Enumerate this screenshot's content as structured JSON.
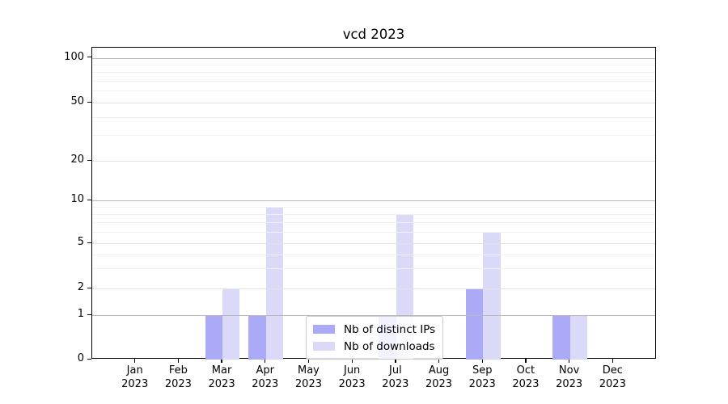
{
  "title": "vcd 2023",
  "chart_data": {
    "type": "bar",
    "title": "vcd 2023",
    "categories": [
      {
        "month": "Jan",
        "year": "2023"
      },
      {
        "month": "Feb",
        "year": "2023"
      },
      {
        "month": "Mar",
        "year": "2023"
      },
      {
        "month": "Apr",
        "year": "2023"
      },
      {
        "month": "May",
        "year": "2023"
      },
      {
        "month": "Jun",
        "year": "2023"
      },
      {
        "month": "Jul",
        "year": "2023"
      },
      {
        "month": "Aug",
        "year": "2023"
      },
      {
        "month": "Sep",
        "year": "2023"
      },
      {
        "month": "Oct",
        "year": "2023"
      },
      {
        "month": "Nov",
        "year": "2023"
      },
      {
        "month": "Dec",
        "year": "2023"
      }
    ],
    "series": [
      {
        "name": "Nb of distinct IPs",
        "color": "#aaaaf7",
        "values": [
          0,
          0,
          1,
          1,
          0,
          0,
          1,
          0,
          2,
          0,
          1,
          0
        ]
      },
      {
        "name": "Nb of downloads",
        "color": "#dadaf8",
        "values": [
          0,
          0,
          2,
          9,
          0,
          0,
          8,
          0,
          6,
          0,
          1,
          0
        ]
      }
    ],
    "yticks": [
      0,
      1,
      2,
      5,
      10,
      20,
      50,
      100
    ],
    "minor_grid_values": [
      3,
      4,
      6,
      7,
      8,
      9,
      30,
      40,
      60,
      70,
      80,
      90
    ],
    "xlabel": "",
    "ylabel": "",
    "scale": "log-like (0,1,2,5,10,20,50,100)",
    "grid": true,
    "legend_position": "lower center"
  }
}
